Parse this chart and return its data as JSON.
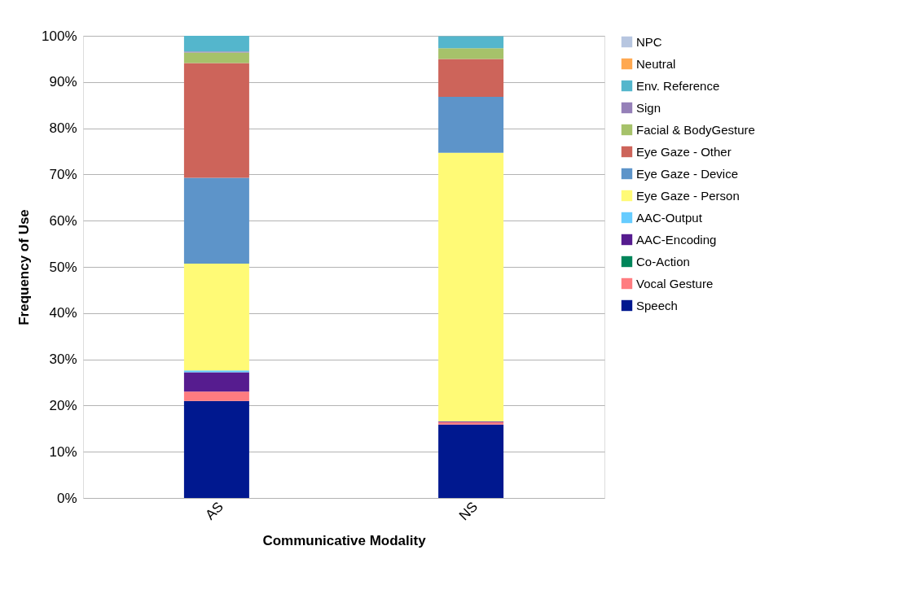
{
  "chart_data": {
    "type": "bar",
    "stacked": true,
    "xlabel": "Communicative Modality",
    "ylabel": "Frequency of Use",
    "categories": [
      "AS",
      "NS"
    ],
    "series": [
      {
        "name": "Speech",
        "color": "#00188f",
        "values": [
          21,
          15.9
        ]
      },
      {
        "name": "Vocal Gesture",
        "color": "#ff7c80",
        "values": [
          2,
          0.5
        ]
      },
      {
        "name": "Co-Action",
        "color": "#00855a",
        "values": [
          0,
          0
        ]
      },
      {
        "name": "AAC-Encoding",
        "color": "#561c8f",
        "values": [
          4.2,
          0.2
        ]
      },
      {
        "name": "AAC-Output",
        "color": "#66ccff",
        "values": [
          0.4,
          0
        ]
      },
      {
        "name": "Eye Gaze - Person",
        "color": "#fffa76",
        "values": [
          23.1,
          58.1
        ]
      },
      {
        "name": "Eye Gaze - Device",
        "color": "#5d94c9",
        "values": [
          18.6,
          12.1
        ]
      },
      {
        "name": "Eye Gaze - Other",
        "color": "#cd645a",
        "values": [
          24.8,
          8.2
        ]
      },
      {
        "name": "Facial & BodyGesture",
        "color": "#a6c26a",
        "values": [
          2.3,
          2.3
        ]
      },
      {
        "name": "Sign",
        "color": "#9580b8",
        "values": [
          0.2,
          0
        ]
      },
      {
        "name": "Env. Reference",
        "color": "#54b6cc",
        "values": [
          3.4,
          2.6
        ]
      },
      {
        "name": "Neutral",
        "color": "#ffa850",
        "values": [
          0,
          0
        ]
      },
      {
        "name": "NPC",
        "color": "#b7c6e0",
        "values": [
          0,
          0
        ]
      }
    ],
    "ylim": [
      0,
      100
    ],
    "yticks": [
      {
        "value": 0,
        "label": "0%"
      },
      {
        "value": 10,
        "label": "10%"
      },
      {
        "value": 20,
        "label": "20%"
      },
      {
        "value": 30,
        "label": "30%"
      },
      {
        "value": 40,
        "label": "40%"
      },
      {
        "value": 50,
        "label": "50%"
      },
      {
        "value": 60,
        "label": "60%"
      },
      {
        "value": 70,
        "label": "70%"
      },
      {
        "value": 80,
        "label": "80%"
      },
      {
        "value": 90,
        "label": "90%"
      },
      {
        "value": 100,
        "label": "100%"
      }
    ],
    "grid": "y",
    "legend": "right"
  }
}
